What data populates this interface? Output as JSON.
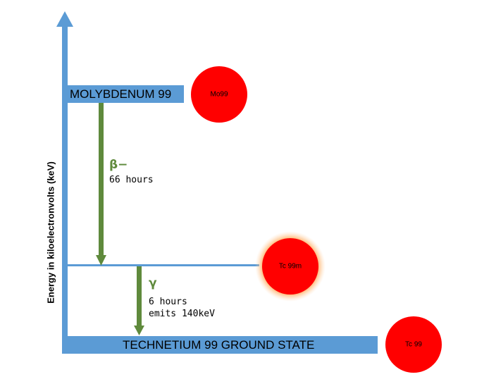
{
  "diagram": {
    "y_axis_label": "Energy in kiloelectronvolts (keV)",
    "levels": {
      "mo99": {
        "label": "MOLYBDENUM 99",
        "atom": "Mo99"
      },
      "tc99m": {
        "atom": "Tc 99m"
      },
      "ground": {
        "label": "TECHNETIUM 99 GROUND STATE",
        "atom": "Tc 99"
      }
    },
    "transitions": {
      "beta": {
        "symbol": "β−",
        "note": "66 hours"
      },
      "gamma": {
        "symbol": "γ",
        "note_line1": "6 hours",
        "note_line2": "emits 140keV"
      }
    },
    "colors": {
      "axis": "#5b9bd5",
      "arrow": "#5f8a3c",
      "atom": "#ff0000",
      "glow": "#ff9a3c"
    }
  }
}
